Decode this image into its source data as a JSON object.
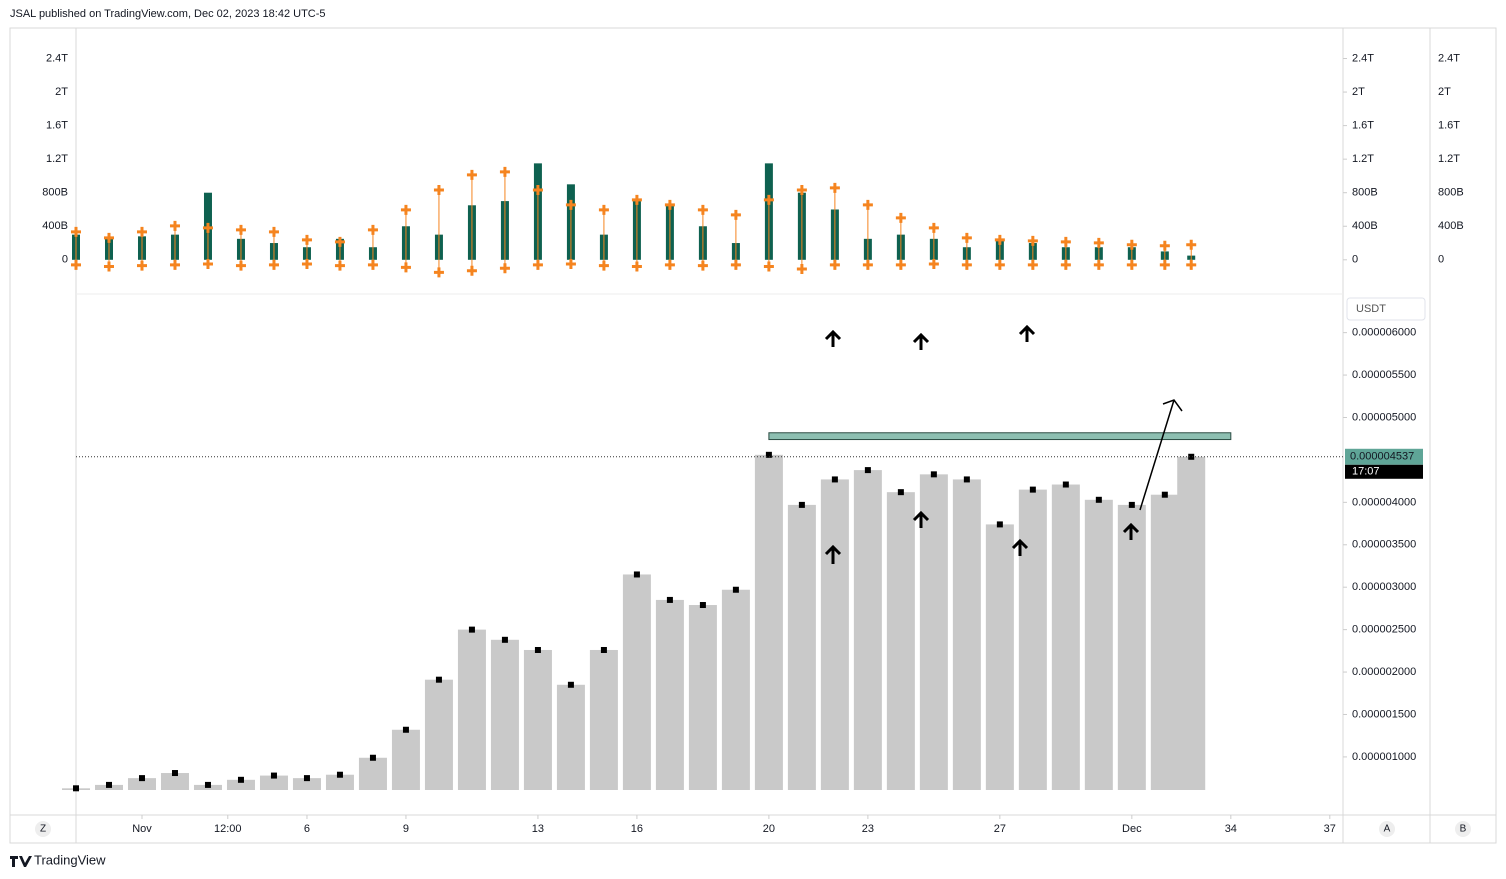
{
  "header": {
    "title": "JSAL published on TradingView.com, Dec 02, 2023 18:42 UTC-5"
  },
  "footer": {
    "brand": "TradingView"
  },
  "ui": {
    "currency": "USDT",
    "time_button": "Z",
    "axis_buttons": [
      "A",
      "B"
    ],
    "countdown": "17:07"
  },
  "chart_data": [
    {
      "type": "bar",
      "x": [
        -1,
        0,
        1,
        2,
        3,
        4,
        5,
        6,
        7,
        8,
        9,
        10,
        11,
        12,
        13,
        14,
        15,
        16,
        17,
        18,
        19,
        20,
        21,
        22,
        23,
        24,
        25,
        26,
        27,
        28,
        29,
        30,
        31,
        32,
        32.8
      ],
      "xlim": [
        -1,
        37.4
      ],
      "ylim": [
        -360,
        2740
      ],
      "yticks": [
        {
          "value": 0,
          "label": "0"
        },
        {
          "value": 400,
          "label": "400B"
        },
        {
          "value": 800,
          "label": "800B"
        },
        {
          "value": 1200,
          "label": "1.2T"
        },
        {
          "value": 1600,
          "label": "1.6T"
        },
        {
          "value": 2000,
          "label": "2T"
        },
        {
          "value": 2400,
          "label": "2.4T"
        }
      ],
      "series": [
        {
          "kind": "bar",
          "color": "#0e6150",
          "values": [
            300,
            250,
            280,
            300,
            800,
            250,
            200,
            150,
            250,
            150,
            400,
            300,
            650,
            700,
            1150,
            900,
            300,
            700,
            650,
            400,
            200,
            1150,
            800,
            600,
            250,
            300,
            250,
            150,
            250,
            200,
            150,
            150,
            150,
            100,
            50
          ]
        },
        {
          "kind": "cross",
          "color": "#f5841f",
          "values": [
            333,
            262,
            333,
            405,
            381,
            357,
            333,
            238,
            214,
            357,
            595,
            833,
            1012,
            1048,
            833,
            655,
            595,
            714,
            655,
            595,
            536,
            714,
            833,
            857,
            655,
            500,
            381,
            262,
            238,
            226,
            214,
            202,
            179,
            167,
            179
          ]
        },
        {
          "kind": "cross",
          "color": "#f5841f",
          "values": [
            -60,
            -80,
            -70,
            -60,
            -50,
            -70,
            -60,
            -50,
            -70,
            -60,
            -90,
            -150,
            -130,
            -100,
            -60,
            -50,
            -70,
            -80,
            -60,
            -70,
            -60,
            -80,
            -110,
            -60,
            -60,
            -60,
            -50,
            -60,
            -60,
            -60,
            -60,
            -60,
            -60,
            -60,
            -60
          ]
        }
      ]
    },
    {
      "type": "column",
      "x": [
        -1,
        0,
        1,
        2,
        3,
        4,
        5,
        6,
        7,
        8,
        9,
        10,
        11,
        12,
        13,
        14,
        15,
        16,
        17,
        18,
        19,
        20,
        21,
        22,
        23,
        24,
        25,
        26,
        27,
        28,
        29,
        30,
        31,
        32,
        32.8
      ],
      "values": [
        6.3e-07,
        6.7e-07,
        7.5e-07,
        8.1e-07,
        6.7e-07,
        7.3e-07,
        7.8e-07,
        7.5e-07,
        7.9e-07,
        9.9e-07,
        1.32e-06,
        1.91e-06,
        2.5e-06,
        2.38e-06,
        2.26e-06,
        1.85e-06,
        2.26e-06,
        3.15e-06,
        2.85e-06,
        2.79e-06,
        2.97e-06,
        4.56e-06,
        3.97e-06,
        4.27e-06,
        4.38e-06,
        4.12e-06,
        4.33e-06,
        4.27e-06,
        3.74e-06,
        4.15e-06,
        4.21e-06,
        4.03e-06,
        3.97e-06,
        4.09e-06,
        4.537e-06
      ],
      "color": "#c9c9c9",
      "close_color": "#000000",
      "xlim": [
        -1,
        37.4
      ],
      "ylim": [
        6.1e-07,
        6.42e-06
      ],
      "xticks": [
        {
          "value": 1,
          "label": "Nov"
        },
        {
          "value": 3.6,
          "label": "12:00"
        },
        6,
        9,
        13,
        16,
        20,
        23,
        27,
        {
          "value": 31,
          "label": "Dec"
        },
        34,
        37
      ],
      "yticks": [
        {
          "value": 1e-06,
          "label": "0.000001000"
        },
        {
          "value": 1.5e-06,
          "label": "0.000001500"
        },
        {
          "value": 2e-06,
          "label": "0.000002000"
        },
        {
          "value": 2.5e-06,
          "label": "0.000002500"
        },
        {
          "value": 3e-06,
          "label": "0.000003000"
        },
        {
          "value": 3.5e-06,
          "label": "0.000003500"
        },
        {
          "value": 4e-06,
          "label": "0.000004000"
        },
        {
          "value": 5e-06,
          "label": "0.000005000"
        },
        {
          "value": 5.5e-06,
          "label": "0.000005500"
        },
        {
          "value": 6e-06,
          "label": "0.000006000"
        }
      ],
      "last_price": {
        "value": 4.537e-06,
        "label": "0.000004537"
      },
      "zone": {
        "x": [
          20,
          34
        ],
        "y": [
          4.74e-06,
          4.82e-06
        ],
        "color": "#8dbfb1"
      }
    }
  ]
}
